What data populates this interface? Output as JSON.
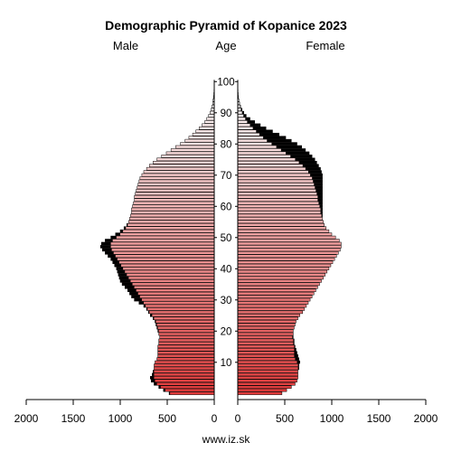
{
  "chart_data": {
    "type": "bar",
    "orientation": "horizontal",
    "title": "Demographic Pyramid of Kopanice 2023",
    "left_label": "Male",
    "center_label": "Age",
    "right_label": "Female",
    "x_ticks": [
      "2000",
      "1500",
      "1000",
      "500",
      "0"
    ],
    "x_ticks_right": [
      "0",
      "500",
      "1000",
      "1500",
      "2000"
    ],
    "xlim": [
      0,
      2000
    ],
    "age_ticks": [
      "10",
      "20",
      "30",
      "40",
      "50",
      "60",
      "70",
      "80",
      "90",
      "100"
    ],
    "age_range": [
      0,
      100
    ],
    "source": "www.iz.sk",
    "colors": {
      "young": "#e03a3a",
      "old": "#ffffff",
      "outline": "#000000",
      "excess": "#000000"
    },
    "male": [
      480,
      540,
      590,
      640,
      670,
      680,
      660,
      650,
      640,
      640,
      630,
      610,
      600,
      600,
      600,
      600,
      590,
      590,
      580,
      590,
      600,
      610,
      620,
      630,
      650,
      680,
      700,
      720,
      750,
      800,
      850,
      880,
      900,
      920,
      950,
      980,
      1000,
      1010,
      1020,
      1030,
      1040,
      1060,
      1080,
      1100,
      1130,
      1160,
      1190,
      1210,
      1200,
      1160,
      1100,
      1050,
      1000,
      960,
      930,
      910,
      900,
      890,
      880,
      880,
      870,
      860,
      850,
      850,
      840,
      830,
      820,
      810,
      800,
      790,
      770,
      750,
      720,
      690,
      650,
      610,
      560,
      510,
      460,
      410,
      360,
      310,
      270,
      230,
      195,
      160,
      130,
      100,
      80,
      60,
      45,
      33,
      24,
      17,
      12,
      8,
      5,
      3,
      2,
      1,
      1
    ],
    "female": [
      470,
      520,
      570,
      610,
      630,
      640,
      640,
      640,
      650,
      650,
      660,
      650,
      640,
      630,
      620,
      610,
      600,
      600,
      590,
      590,
      590,
      600,
      610,
      620,
      640,
      660,
      690,
      710,
      730,
      750,
      770,
      790,
      810,
      830,
      850,
      870,
      890,
      910,
      930,
      950,
      970,
      990,
      1010,
      1030,
      1050,
      1070,
      1090,
      1100,
      1100,
      1080,
      1040,
      1000,
      970,
      940,
      920,
      910,
      900,
      900,
      900,
      900,
      900,
      900,
      900,
      900,
      900,
      900,
      900,
      900,
      900,
      900,
      900,
      890,
      880,
      860,
      840,
      820,
      790,
      760,
      720,
      680,
      630,
      570,
      510,
      440,
      370,
      300,
      240,
      180,
      130,
      90,
      65,
      45,
      30,
      20,
      12,
      8,
      5,
      3,
      2,
      1,
      1
    ]
  }
}
